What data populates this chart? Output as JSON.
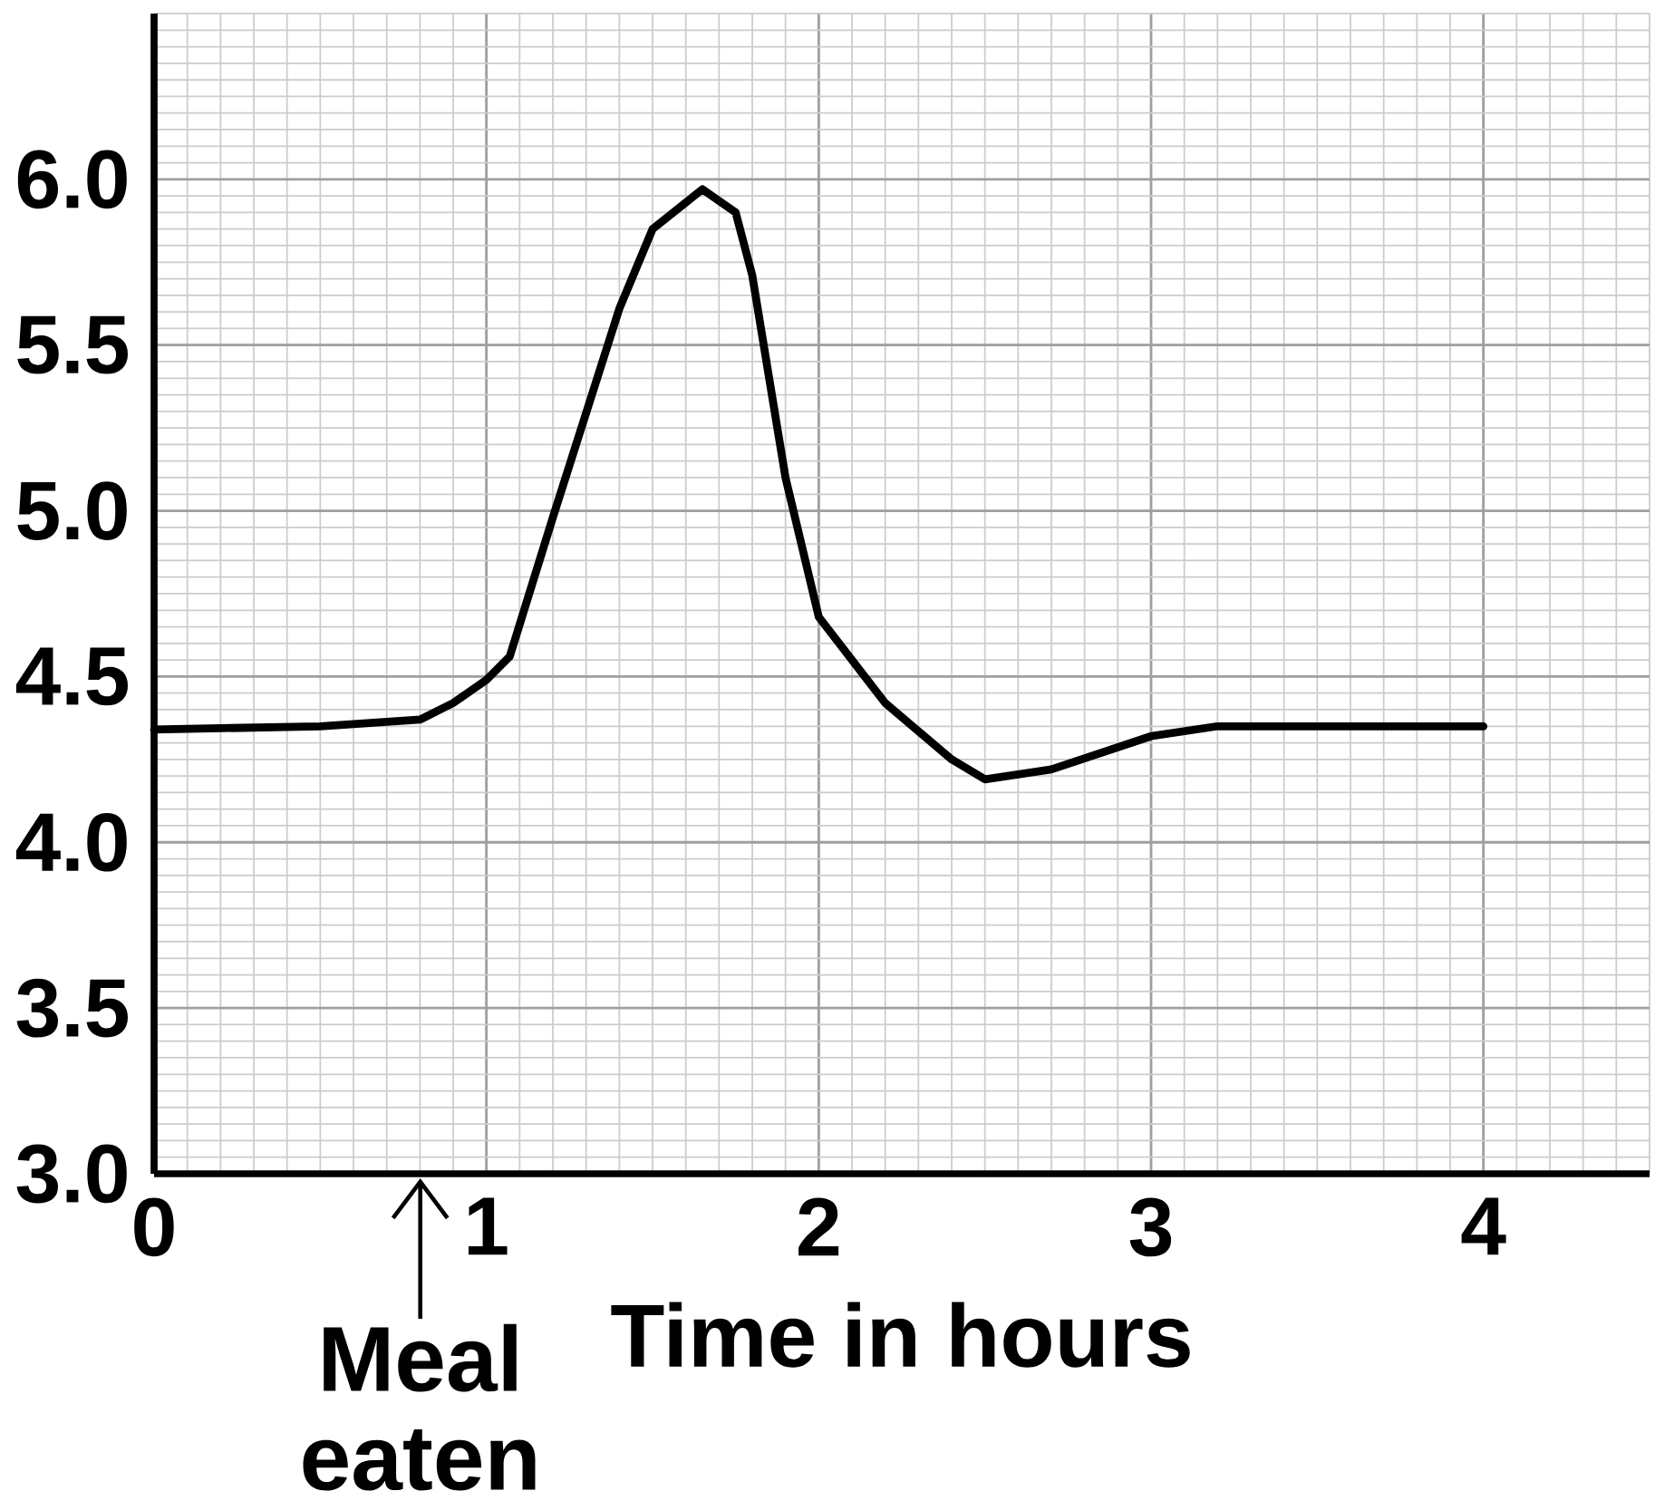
{
  "chart_data": {
    "type": "line",
    "xlabel": "Time in hours",
    "x": [
      0,
      0.5,
      0.8,
      0.9,
      1.0,
      1.07,
      1.2,
      1.4,
      1.5,
      1.65,
      1.75,
      1.8,
      1.9,
      2.0,
      2.2,
      2.4,
      2.5,
      2.7,
      3.0,
      3.2,
      4.0
    ],
    "series": [
      {
        "color": "#000000",
        "values": [
          4.34,
          4.35,
          4.37,
          4.42,
          4.49,
          4.56,
          4.98,
          5.61,
          5.85,
          5.97,
          5.9,
          5.71,
          5.1,
          4.68,
          4.42,
          4.25,
          4.19,
          4.22,
          4.32,
          4.35,
          4.35
        ]
      }
    ],
    "xlim": [
      0,
      4.5
    ],
    "ylim": [
      3.0,
      6.5
    ],
    "xticks": [
      0,
      1,
      2,
      3,
      4
    ],
    "yticks": [
      {
        "value": 3.0,
        "label": "3.0"
      },
      {
        "value": 3.5,
        "label": "3.5"
      },
      {
        "value": 4.0,
        "label": "4.0"
      },
      {
        "value": 4.5,
        "label": "4.5"
      },
      {
        "value": 5.0,
        "label": "5.0"
      },
      {
        "value": 5.5,
        "label": "5.5"
      },
      {
        "value": 6.0,
        "label": "6.0"
      }
    ],
    "annotations": [
      "Meal eaten"
    ],
    "grid": true,
    "marker": "none",
    "line_style": "solid"
  }
}
